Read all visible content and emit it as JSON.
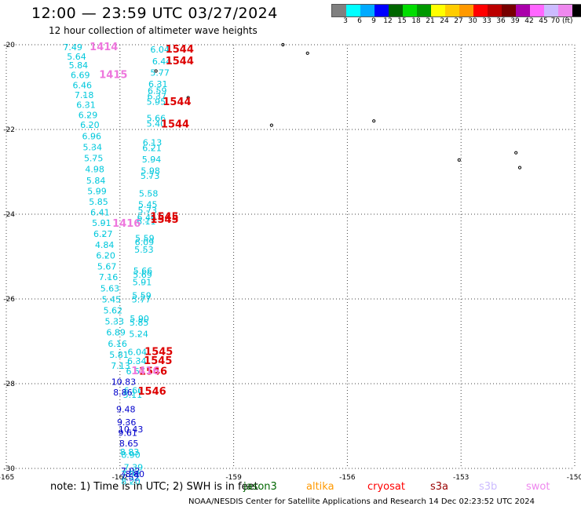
{
  "title": "12:00 — 23:59 UTC 03/27/2024",
  "subtitle": "12 hour collection of altimeter wave heights",
  "colorbar": {
    "colors": [
      "#808080",
      "#00ffff",
      "#00aaff",
      "#0000ff",
      "#006600",
      "#00dd00",
      "#009900",
      "#ffff00",
      "#ffcc00",
      "#ff9900",
      "#ff0000",
      "#bb0000",
      "#770000",
      "#aa00aa",
      "#ff66ff",
      "#ccbbff",
      "#ee88ee",
      "#000000"
    ],
    "labels": [
      "3",
      "6",
      "9",
      "12",
      "15",
      "18",
      "21",
      "24",
      "27",
      "30",
      "33",
      "36",
      "39",
      "42",
      "45",
      "70 (ft)"
    ]
  },
  "axes": {
    "x_ticks": [
      "-165",
      "-162",
      "-159",
      "-156",
      "-153",
      "-150"
    ],
    "y_ticks": [
      "-20",
      "-22",
      "-24",
      "-26",
      "-28",
      "-30"
    ]
  },
  "colors": {
    "cyan": "#00c8dc",
    "blue": "#0000cc",
    "pink": "#ee77dd",
    "red": "#dd0000"
  },
  "track_a": [
    {
      "lon": -163.5,
      "lat": -20.0,
      "v": "7.49"
    },
    {
      "lon": -163.4,
      "lat": -20.22,
      "v": "5.64"
    },
    {
      "lon": -163.35,
      "lat": -20.43,
      "v": "5.84"
    },
    {
      "lon": -163.3,
      "lat": -20.66,
      "v": "6.69"
    },
    {
      "lon": -163.25,
      "lat": -20.9,
      "v": "6.46"
    },
    {
      "lon": -163.2,
      "lat": -21.13,
      "v": "7.18"
    },
    {
      "lon": -163.15,
      "lat": -21.36,
      "v": "6.31"
    },
    {
      "lon": -163.1,
      "lat": -21.6,
      "v": "6.29"
    },
    {
      "lon": -163.05,
      "lat": -21.83,
      "v": "6.20"
    },
    {
      "lon": -163.0,
      "lat": -22.1,
      "v": "6.96"
    },
    {
      "lon": -162.98,
      "lat": -22.36,
      "v": "5.34"
    },
    {
      "lon": -162.95,
      "lat": -22.62,
      "v": "5.75"
    },
    {
      "lon": -162.92,
      "lat": -22.88,
      "v": "4.98"
    },
    {
      "lon": -162.89,
      "lat": -23.15,
      "v": "5.84"
    },
    {
      "lon": -162.86,
      "lat": -23.4,
      "v": "5.99"
    },
    {
      "lon": -162.82,
      "lat": -23.65,
      "v": "5.85"
    },
    {
      "lon": -162.78,
      "lat": -23.9,
      "v": "6.41"
    },
    {
      "lon": -162.74,
      "lat": -24.15,
      "v": "5.91"
    },
    {
      "lon": -162.7,
      "lat": -24.41,
      "v": "6.27"
    },
    {
      "lon": -162.66,
      "lat": -24.67,
      "v": "4.84"
    },
    {
      "lon": -162.63,
      "lat": -24.92,
      "v": "6.20"
    },
    {
      "lon": -162.6,
      "lat": -25.18,
      "v": "5.67"
    },
    {
      "lon": -162.56,
      "lat": -25.43,
      "v": "7.16"
    },
    {
      "lon": -162.52,
      "lat": -25.69,
      "v": "5.63"
    },
    {
      "lon": -162.48,
      "lat": -25.95,
      "v": "5.45"
    },
    {
      "lon": -162.44,
      "lat": -26.21,
      "v": "5.62"
    },
    {
      "lon": -162.4,
      "lat": -26.47,
      "v": "5.33"
    },
    {
      "lon": -162.36,
      "lat": -26.73,
      "v": "6.89"
    },
    {
      "lon": -162.32,
      "lat": -27.0,
      "v": "6.16"
    },
    {
      "lon": -162.28,
      "lat": -27.26,
      "v": "5.81"
    },
    {
      "lon": -162.24,
      "lat": -27.52,
      "v": "7.13"
    }
  ],
  "track_b": [
    {
      "lon": -161.2,
      "lat": -20.06,
      "v": "6.04"
    },
    {
      "lon": -161.15,
      "lat": -20.33,
      "v": "6.44"
    },
    {
      "lon": -161.2,
      "lat": -20.6,
      "v": "5.77"
    },
    {
      "lon": -161.25,
      "lat": -20.87,
      "v": "6.31"
    },
    {
      "lon": -161.27,
      "lat": -21.03,
      "v": "6.59"
    },
    {
      "lon": -161.28,
      "lat": -21.16,
      "v": "6.37"
    },
    {
      "lon": -161.3,
      "lat": -21.29,
      "v": "5.95"
    },
    {
      "lon": -161.3,
      "lat": -21.68,
      "v": "5.66"
    },
    {
      "lon": -161.3,
      "lat": -21.81,
      "v": "5.40"
    },
    {
      "lon": -161.4,
      "lat": -22.25,
      "v": "6.13"
    },
    {
      "lon": -161.41,
      "lat": -22.38,
      "v": "6.21"
    },
    {
      "lon": -161.42,
      "lat": -22.65,
      "v": "5.94"
    },
    {
      "lon": -161.45,
      "lat": -22.92,
      "v": "5.98"
    },
    {
      "lon": -161.46,
      "lat": -23.04,
      "v": "5.73"
    },
    {
      "lon": -161.5,
      "lat": -23.45,
      "v": "5.58"
    },
    {
      "lon": -161.52,
      "lat": -23.71,
      "v": "5.45"
    },
    {
      "lon": -161.53,
      "lat": -23.85,
      "v": "5.73"
    },
    {
      "lon": -161.55,
      "lat": -24.02,
      "v": "6.46"
    },
    {
      "lon": -161.56,
      "lat": -24.11,
      "v": "6.11"
    },
    {
      "lon": -161.6,
      "lat": -24.51,
      "v": "5.59"
    },
    {
      "lon": -161.61,
      "lat": -24.6,
      "v": "6.09"
    },
    {
      "lon": -161.62,
      "lat": -24.78,
      "v": "5.53"
    },
    {
      "lon": -161.65,
      "lat": -25.28,
      "v": "5.66"
    },
    {
      "lon": -161.66,
      "lat": -25.37,
      "v": "5.69"
    },
    {
      "lon": -161.67,
      "lat": -25.55,
      "v": "5.91"
    },
    {
      "lon": -161.68,
      "lat": -25.86,
      "v": "5.59"
    },
    {
      "lon": -161.69,
      "lat": -25.95,
      "v": "5.77"
    },
    {
      "lon": -161.74,
      "lat": -26.41,
      "v": "5.90"
    },
    {
      "lon": -161.75,
      "lat": -26.5,
      "v": "5.85"
    },
    {
      "lon": -161.76,
      "lat": -26.77,
      "v": "5.24"
    },
    {
      "lon": -161.8,
      "lat": -27.19,
      "v": "6.04"
    },
    {
      "lon": -161.81,
      "lat": -27.41,
      "v": "6.34"
    },
    {
      "lon": -161.84,
      "lat": -27.65,
      "v": "6.57"
    },
    {
      "lon": -161.9,
      "lat": -28.1,
      "v": "6.66"
    },
    {
      "lon": -161.92,
      "lat": -28.2,
      "v": "5.11"
    }
  ],
  "track_c": [
    {
      "lon": -162.23,
      "lat": -27.9,
      "v": "10.83",
      "c": "blue"
    },
    {
      "lon": -162.18,
      "lat": -28.15,
      "v": "8.86",
      "c": "blue"
    },
    {
      "lon": -162.1,
      "lat": -28.55,
      "v": "9.48",
      "c": "blue"
    },
    {
      "lon": -162.08,
      "lat": -28.85,
      "v": "9.36",
      "c": "blue"
    },
    {
      "lon": -162.04,
      "lat": -29.02,
      "v": "10.43",
      "c": "blue"
    },
    {
      "lon": -162.05,
      "lat": -29.1,
      "v": "9.61",
      "c": "blue"
    },
    {
      "lon": -162.02,
      "lat": -29.35,
      "v": "8.65",
      "c": "blue"
    },
    {
      "lon": -162.0,
      "lat": -29.56,
      "v": "8.83",
      "c": "cyan"
    },
    {
      "lon": -161.97,
      "lat": -29.62,
      "v": "8.90",
      "c": "cyan"
    },
    {
      "lon": -161.9,
      "lat": -29.92,
      "v": "7.39",
      "c": "cyan"
    },
    {
      "lon": -161.98,
      "lat": -30.0,
      "v": "7.92",
      "c": "blue"
    },
    {
      "lon": -161.97,
      "lat": -30.07,
      "v": "7.92",
      "c": "cyan"
    },
    {
      "lon": -161.86,
      "lat": -30.07,
      "v": "8.80",
      "c": "blue"
    },
    {
      "lon": -161.99,
      "lat": -30.16,
      "v": "7.52",
      "c": "blue"
    },
    {
      "lon": -161.97,
      "lat": -30.25,
      "v": "8.20",
      "c": "cyan"
    }
  ],
  "ids": [
    {
      "lon": -162.8,
      "lat": -20.0,
      "t": "1414",
      "c": "pink"
    },
    {
      "lon": -162.55,
      "lat": -20.66,
      "t": "1415",
      "c": "pink"
    },
    {
      "lon": -162.2,
      "lat": -24.17,
      "t": "1416",
      "c": "pink"
    },
    {
      "lon": -160.8,
      "lat": -20.06,
      "t": "1544",
      "c": "red"
    },
    {
      "lon": -160.8,
      "lat": -20.33,
      "t": "1544",
      "c": "red"
    },
    {
      "lon": -160.87,
      "lat": -21.3,
      "t": "1544",
      "c": "red"
    },
    {
      "lon": -160.92,
      "lat": -21.82,
      "t": "1544",
      "c": "red"
    },
    {
      "lon": -161.2,
      "lat": -24.01,
      "t": "1545",
      "c": "red"
    },
    {
      "lon": -161.2,
      "lat": -24.07,
      "t": "1545",
      "c": "red"
    },
    {
      "lon": -161.35,
      "lat": -27.19,
      "t": "1545",
      "c": "red"
    },
    {
      "lon": -161.37,
      "lat": -27.41,
      "t": "1545",
      "c": "red"
    },
    {
      "lon": -161.5,
      "lat": -27.66,
      "t": "1546",
      "c": "red"
    },
    {
      "lon": -161.53,
      "lat": -28.13,
      "t": "1546",
      "c": "red"
    },
    {
      "lon": -161.7,
      "lat": -27.65,
      "t": "1416",
      "c": "pink"
    }
  ],
  "islands": [
    {
      "lon": -157.7,
      "lat": -20.0
    },
    {
      "lon": -157.05,
      "lat": -20.2
    },
    {
      "lon": -161.05,
      "lat": -20.62
    },
    {
      "lon": -160.2,
      "lat": -21.25
    },
    {
      "lon": -158.0,
      "lat": -21.9
    },
    {
      "lon": -155.3,
      "lat": -21.8
    },
    {
      "lon": -153.05,
      "lat": -22.72
    },
    {
      "lon": -151.55,
      "lat": -22.55
    },
    {
      "lon": -151.45,
      "lat": -22.9
    }
  ],
  "note": "note:  1) Time is in UTC; 2) SWH is in feet",
  "satellites": [
    {
      "name": "jason3",
      "color": "#006600"
    },
    {
      "name": "altika",
      "color": "#ff9900"
    },
    {
      "name": "cryosat",
      "color": "#ff0000"
    },
    {
      "name": "s3a",
      "color": "#990000"
    },
    {
      "name": "s3b",
      "color": "#ccbbff"
    },
    {
      "name": "swot",
      "color": "#ee88ee"
    }
  ],
  "footer": "NOAA/NESDIS Center for Satellite Applications and Research    14 Dec 02:23:52 UTC 2024"
}
